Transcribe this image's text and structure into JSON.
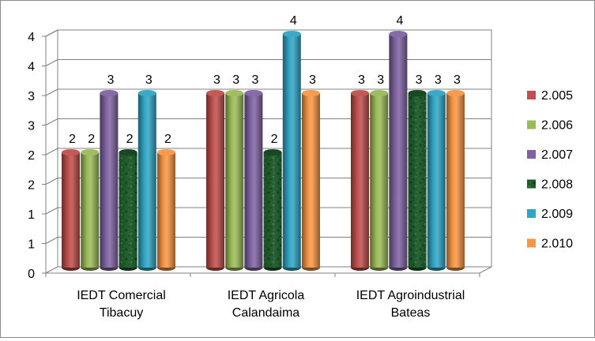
{
  "chart_data": {
    "type": "bar",
    "categories": [
      [
        "IEDT Comercial",
        "Tibacuy"
      ],
      [
        "IEDT Agricola",
        "Calandaima"
      ],
      [
        "IEDT Agroindustrial",
        "Bateas"
      ]
    ],
    "y_ticks": [
      "0",
      "1",
      "1",
      "2",
      "2",
      "3",
      "3",
      "4",
      "4"
    ],
    "ylim": [
      0,
      4
    ],
    "grid": true,
    "legend_position": "right",
    "series": [
      {
        "name": "2.005",
        "color": "#c0504d",
        "values": [
          2,
          3,
          3
        ],
        "labels": [
          "2",
          "3",
          "3"
        ]
      },
      {
        "name": "2.006",
        "color": "#9bbb59",
        "values": [
          2,
          3,
          3
        ],
        "labels": [
          "2",
          "3",
          "3"
        ]
      },
      {
        "name": "2.007",
        "color": "#8064a2",
        "values": [
          3,
          3,
          4
        ],
        "labels": [
          "3",
          "3",
          "4"
        ]
      },
      {
        "name": "2.008",
        "color": "#1e5a2a",
        "values": [
          2,
          2,
          3
        ],
        "labels": [
          "2",
          "2",
          "3"
        ]
      },
      {
        "name": "2.009",
        "color": "#31a6c4",
        "values": [
          3,
          4,
          3
        ],
        "labels": [
          "3",
          "4",
          "3"
        ]
      },
      {
        "name": "2.010",
        "color": "#f79646",
        "values": [
          2,
          3,
          3
        ],
        "labels": [
          "2",
          "3",
          "3"
        ]
      }
    ]
  }
}
